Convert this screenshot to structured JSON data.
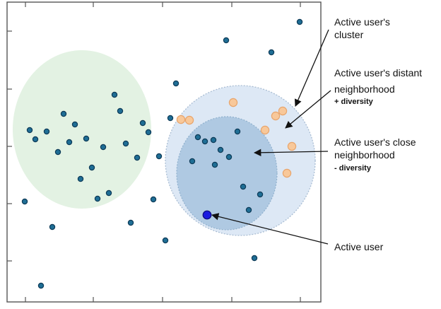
{
  "colors": {
    "plot_frame": "#555555",
    "user_point_fill": "#1f6e95",
    "user_point_stroke": "#0d3a57",
    "active_user_fill": "#1a1ae0",
    "active_user_stroke": "#0b0b7a",
    "diverse_point_fill": "#f8c89a",
    "diverse_point_stroke": "#e8a56c",
    "green_region": "#e3f2e3",
    "distant_region": "#dde8f5",
    "close_region": "#a7c3de",
    "arrow": "#111111"
  },
  "regions": [
    {
      "name": "left-cluster-region",
      "color": "green_region"
    },
    {
      "name": "distant-neighborhood-region",
      "color": "distant_region"
    },
    {
      "name": "close-neighborhood-region",
      "color": "close_region"
    }
  ],
  "annotations": {
    "cluster": {
      "lines": [
        "Active user's",
        "cluster"
      ]
    },
    "distant": {
      "lines": [
        "Active user's distant",
        "neighborhood"
      ],
      "bold": "+ diversity"
    },
    "close": {
      "lines": [
        "Active user's close",
        "neighborhood"
      ],
      "bold": "- diversity"
    },
    "active": {
      "lines": [
        "Active user"
      ]
    }
  }
}
